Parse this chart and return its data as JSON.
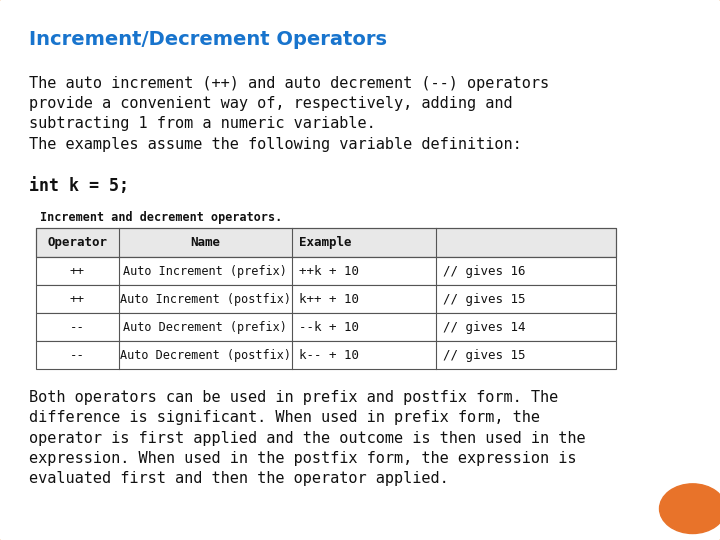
{
  "title": "Increment/Decrement Operators",
  "title_color": "#1874CD",
  "bg_color": "#FFFFFF",
  "border_color": "#F4A460",
  "para1": "The auto increment (++) and auto decrement (--) operators\nprovide a convenient way of, respectively, adding and\nsubtracting 1 from a numeric variable.\nThe examples assume the following variable definition:",
  "para1_bold": "int k = 5;",
  "table_caption": "Increment and decrement operators.",
  "table_headers": [
    "Operator",
    "Name",
    "Example"
  ],
  "table_rows": [
    [
      "++",
      "Auto Increment (prefix)",
      "++k + 10",
      "// gives 16"
    ],
    [
      "++",
      "Auto Increment (postfix)",
      "k++ + 10",
      "// gives 15"
    ],
    [
      "--",
      "Auto Decrement (prefix)",
      "--k + 10",
      "// gives 14"
    ],
    [
      "--",
      "Auto Decrement (postfix)",
      "k-- + 10",
      "// gives 15"
    ]
  ],
  "para2": "Both operators can be used in prefix and postfix form. The\ndifference is significant. When used in prefix form, the\noperator is first applied and the outcome is then used in the\nexpression. When used in the postfix form, the expression is\nevaluated first and then the operator applied.",
  "orange_circle_color": "#E8732A",
  "font_size_title": 14,
  "font_size_body": 11,
  "font_size_table": 9,
  "slide_bg": "#F0C8A0"
}
